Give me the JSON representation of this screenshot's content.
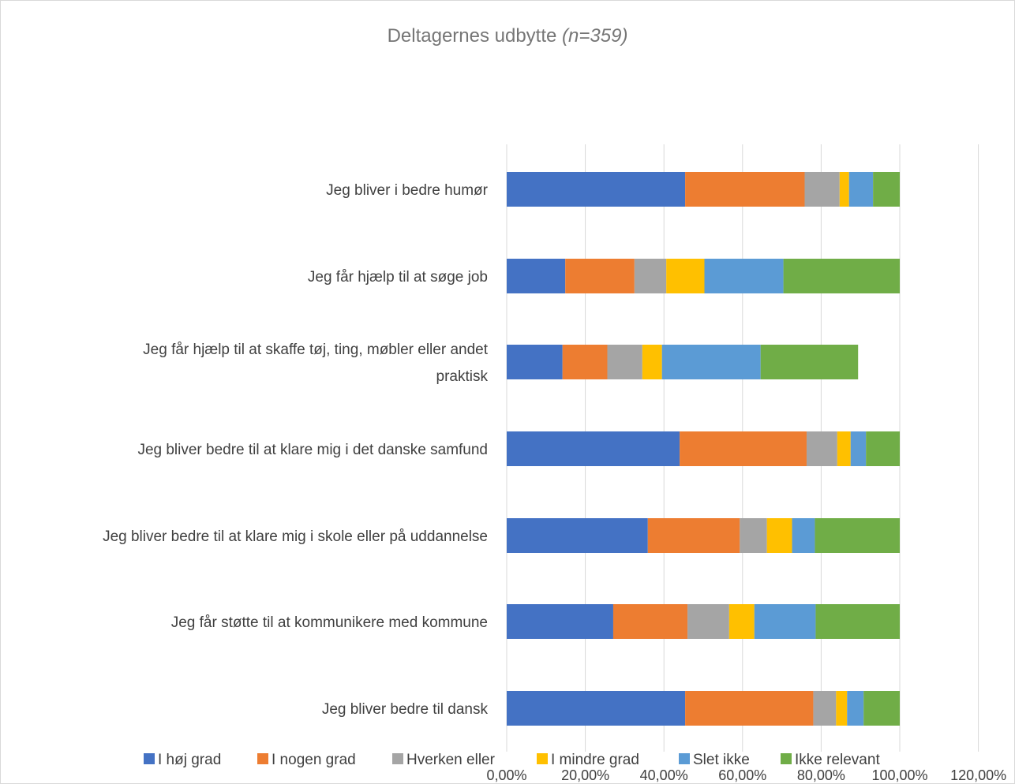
{
  "chart_data": {
    "type": "bar",
    "orientation": "horizontal",
    "stacked": true,
    "title": "Deltagernes udbytte",
    "title_suffix": "(n=359)",
    "categories": [
      "Jeg bliver i bedre humør",
      "Jeg får hjælp til at søge job",
      "Jeg får hjælp til at skaffe tøj, ting, møbler eller andet praktisk",
      "Jeg bliver bedre til at klare mig i det danske samfund",
      "Jeg bliver bedre til at klare mig i skole eller på uddannelse",
      "Jeg får støtte til at kommunikere med kommune",
      "Jeg bliver bedre til dansk"
    ],
    "category_lines": [
      [
        "Jeg bliver i bedre humør"
      ],
      [
        "Jeg får hjælp til at søge job"
      ],
      [
        "Jeg får hjælp til at skaffe tøj, ting, møbler eller andet",
        "praktisk"
      ],
      [
        "Jeg bliver bedre til at klare mig i det danske samfund"
      ],
      [
        "Jeg bliver bedre til at klare mig i skole eller på uddannelse"
      ],
      [
        "Jeg får støtte til at kommunikere med kommune"
      ],
      [
        "Jeg bliver bedre til dansk"
      ]
    ],
    "series": [
      {
        "name": "I høj grad",
        "color": "#4472C4",
        "values": [
          45.4,
          14.9,
          14.2,
          44.0,
          35.9,
          27.1,
          45.4
        ]
      },
      {
        "name": "I nogen grad",
        "color": "#ED7D31",
        "values": [
          30.4,
          17.6,
          11.4,
          32.3,
          23.4,
          18.9,
          32.6
        ]
      },
      {
        "name": "Hverken eller",
        "color": "#A5A5A5",
        "values": [
          8.9,
          8.1,
          8.9,
          7.8,
          6.9,
          10.6,
          5.8
        ]
      },
      {
        "name": "I mindre grad",
        "color": "#FFC000",
        "values": [
          2.4,
          9.7,
          5.0,
          3.4,
          6.4,
          6.4,
          2.8
        ]
      },
      {
        "name": "Slet ikke",
        "color": "#5B9BD5",
        "values": [
          6.1,
          20.1,
          25.1,
          3.9,
          5.8,
          15.6,
          4.2
        ]
      },
      {
        "name": "Ikke relevant",
        "color": "#70AD47",
        "values": [
          6.8,
          29.6,
          24.8,
          8.6,
          21.6,
          21.4,
          9.2
        ]
      }
    ],
    "xlim": [
      0,
      120
    ],
    "xticks": [
      "0,00%",
      "20,00%",
      "40,00%",
      "60,00%",
      "80,00%",
      "100,00%",
      "120,00%"
    ],
    "grid": true,
    "legend_position": "bottom"
  }
}
